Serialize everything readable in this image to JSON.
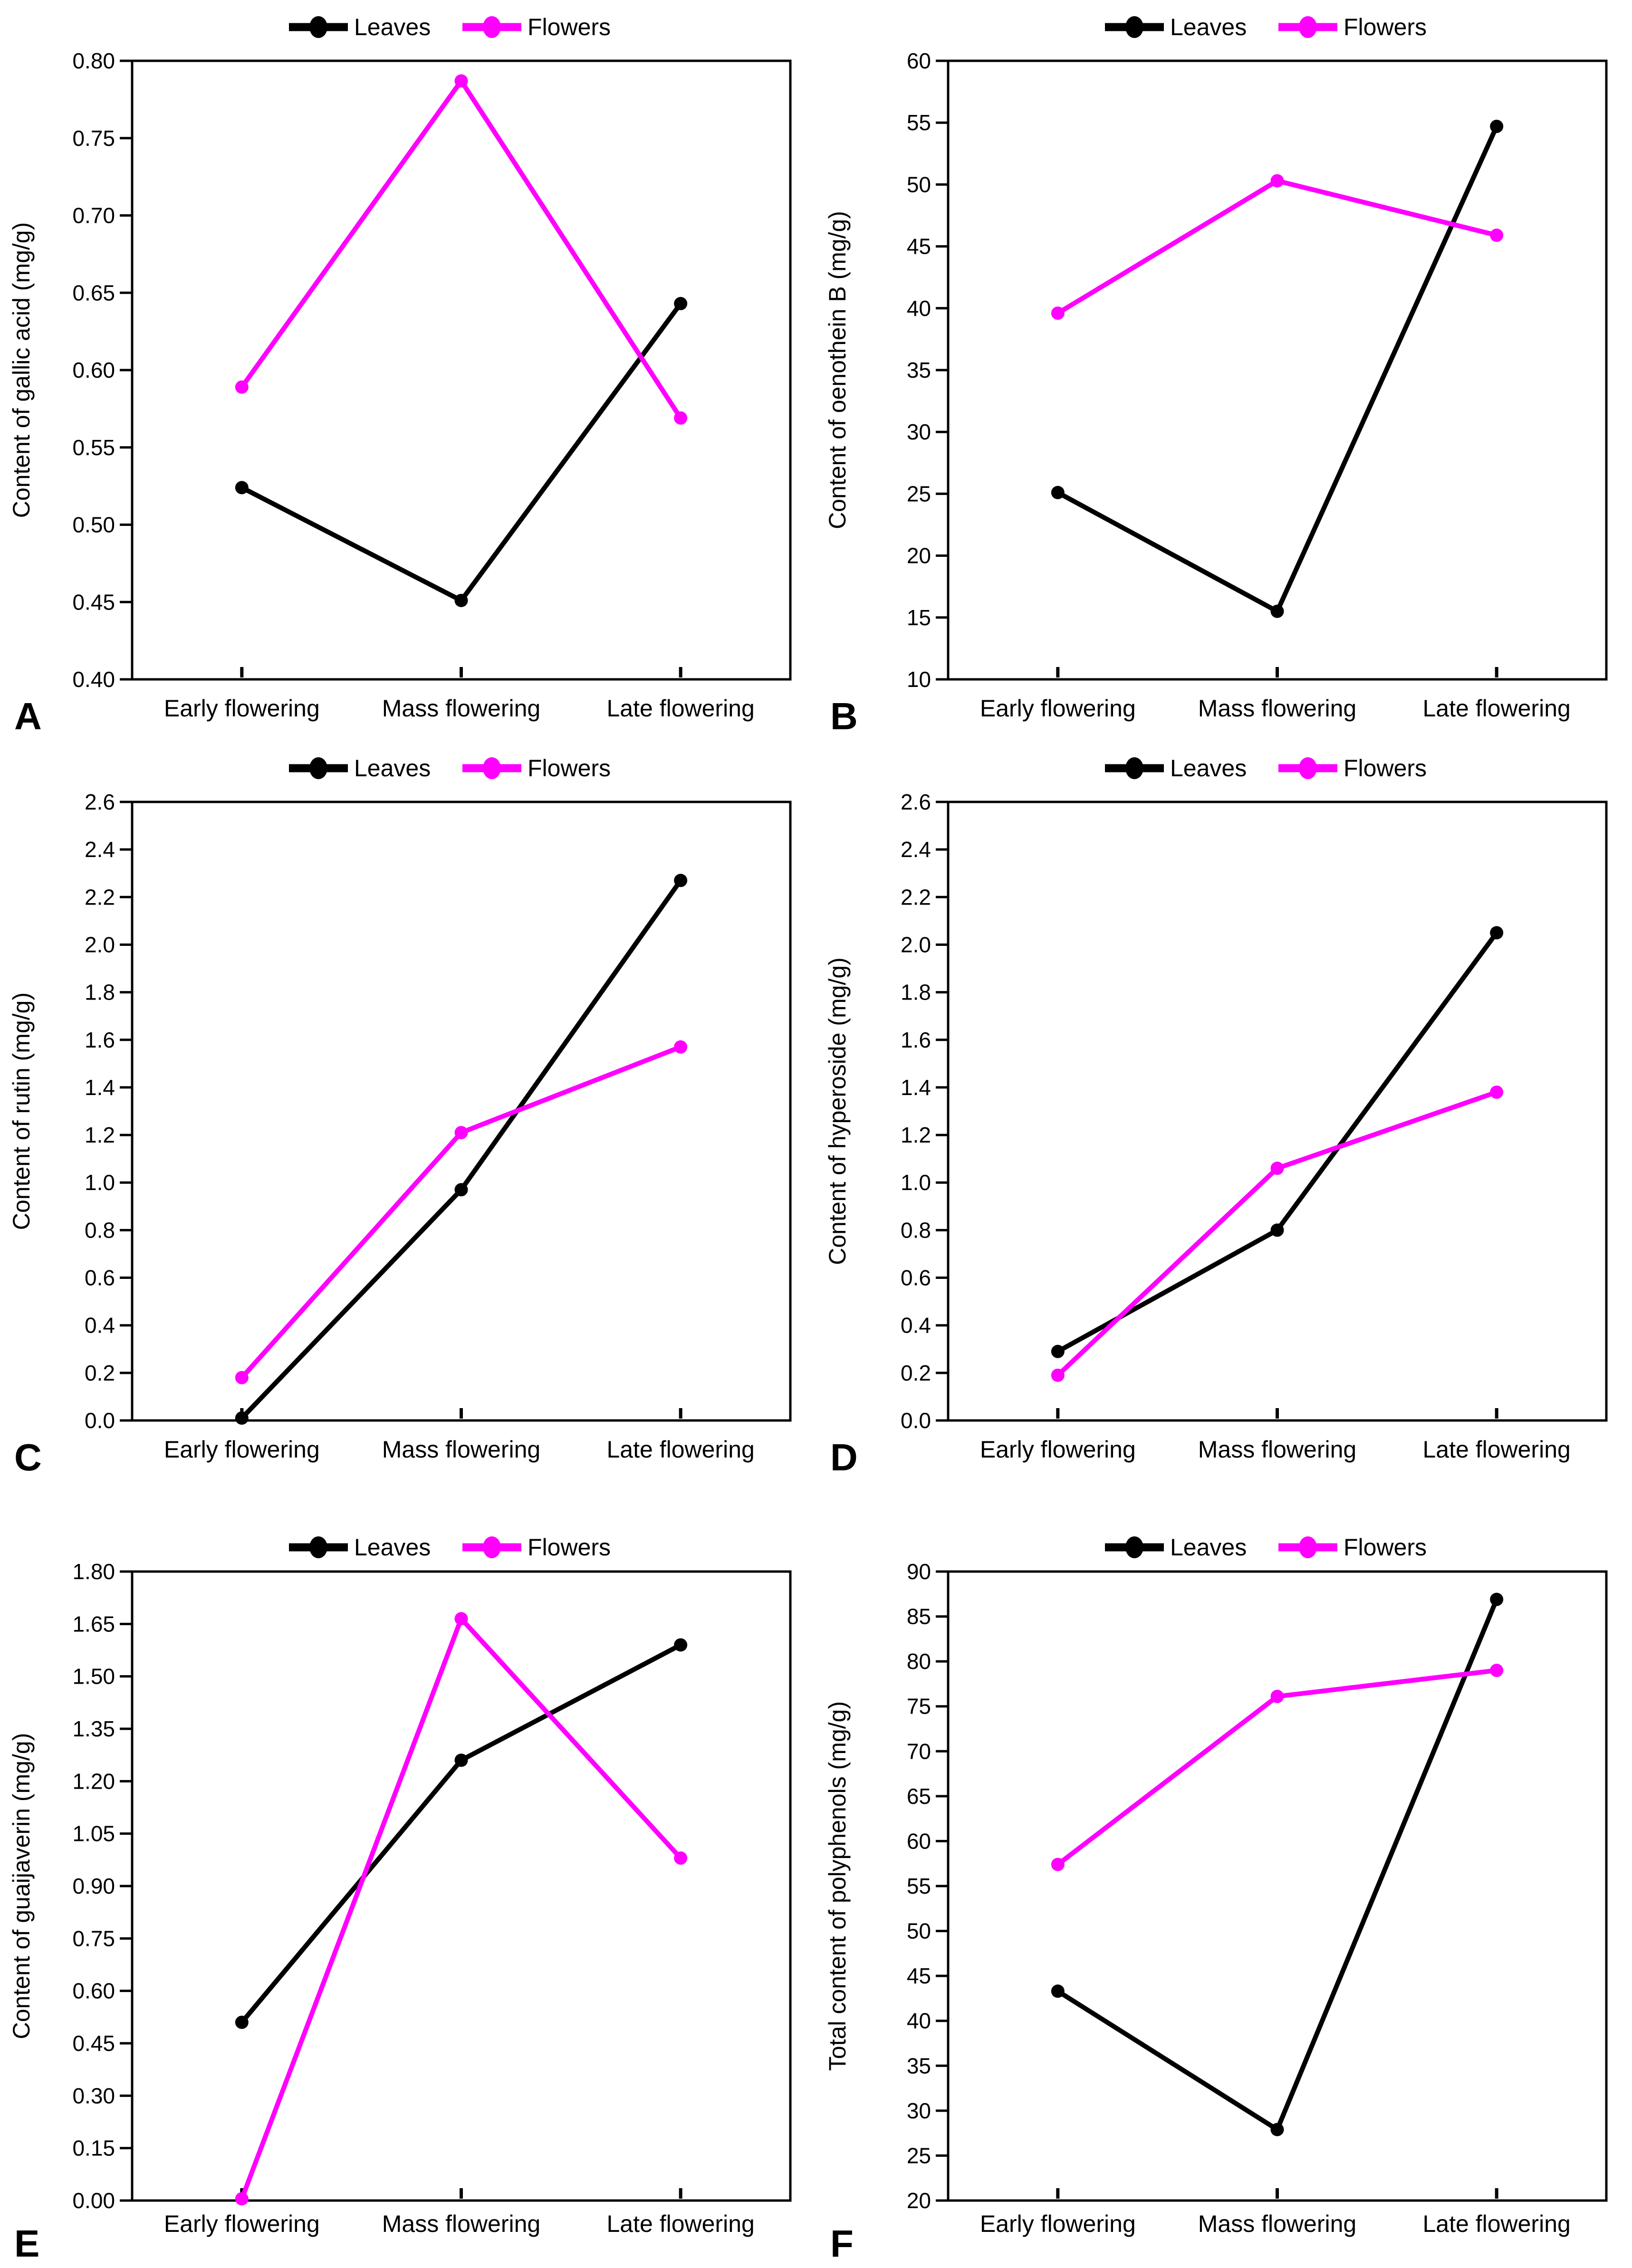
{
  "figure": {
    "background": "#ffffff",
    "legend": {
      "position": "top",
      "items": [
        {
          "label": "Leaves",
          "color": "#000000"
        },
        {
          "label": "Flowers",
          "color": "#FF00FF"
        }
      ]
    },
    "categories": [
      "Early flowering",
      "Mass flowering",
      "Late flowering"
    ],
    "panel_letters": [
      "A",
      "B",
      "C",
      "D",
      "E",
      "F"
    ]
  },
  "chart_data": [
    {
      "type": "line",
      "letter": "A",
      "ylabel": "Content of gallic acid (mg/g)",
      "xlabel": "",
      "ylim": [
        0.4,
        0.8
      ],
      "yticks": [
        "0.40",
        "0.45",
        "0.50",
        "0.55",
        "0.60",
        "0.65",
        "0.70",
        "0.75",
        "0.80"
      ],
      "categories": [
        "Early flowering",
        "Mass flowering",
        "Late flowering"
      ],
      "grid": false,
      "legend_position": "top",
      "series": [
        {
          "name": "Leaves",
          "color": "#000000",
          "values": [
            0.524,
            0.451,
            0.643
          ]
        },
        {
          "name": "Flowers",
          "color": "#FF00FF",
          "values": [
            0.589,
            0.787,
            0.569
          ]
        }
      ]
    },
    {
      "type": "line",
      "letter": "B",
      "ylabel": "Content of oenothein B (mg/g)",
      "xlabel": "",
      "ylim": [
        10,
        60
      ],
      "yticks": [
        "10",
        "15",
        "20",
        "25",
        "30",
        "35",
        "40",
        "45",
        "50",
        "55",
        "60"
      ],
      "categories": [
        "Early flowering",
        "Mass flowering",
        "Late flowering"
      ],
      "grid": false,
      "legend_position": "top",
      "series": [
        {
          "name": "Leaves",
          "color": "#000000",
          "values": [
            25.1,
            15.5,
            54.7
          ]
        },
        {
          "name": "Flowers",
          "color": "#FF00FF",
          "values": [
            39.6,
            50.3,
            45.9
          ]
        }
      ]
    },
    {
      "type": "line",
      "letter": "C",
      "ylabel": "Content of rutin (mg/g)",
      "xlabel": "",
      "ylim": [
        0.0,
        2.6
      ],
      "yticks": [
        "0.0",
        "0.2",
        "0.4",
        "0.6",
        "0.8",
        "1.0",
        "1.2",
        "1.4",
        "1.6",
        "1.8",
        "2.0",
        "2.2",
        "2.4",
        "2.6"
      ],
      "categories": [
        "Early flowering",
        "Mass flowering",
        "Late flowering"
      ],
      "grid": false,
      "legend_position": "top",
      "series": [
        {
          "name": "Leaves",
          "color": "#000000",
          "values": [
            0.01,
            0.97,
            2.27
          ]
        },
        {
          "name": "Flowers",
          "color": "#FF00FF",
          "values": [
            0.18,
            1.21,
            1.57
          ]
        }
      ]
    },
    {
      "type": "line",
      "letter": "D",
      "ylabel": "Content of hyperoside (mg/g)",
      "xlabel": "",
      "ylim": [
        0.0,
        2.6
      ],
      "yticks": [
        "0.0",
        "0.2",
        "0.4",
        "0.6",
        "0.8",
        "1.0",
        "1.2",
        "1.4",
        "1.6",
        "1.8",
        "2.0",
        "2.2",
        "2.4",
        "2.6"
      ],
      "categories": [
        "Early flowering",
        "Mass flowering",
        "Late flowering"
      ],
      "grid": false,
      "legend_position": "top",
      "series": [
        {
          "name": "Leaves",
          "color": "#000000",
          "values": [
            0.29,
            0.8,
            2.05
          ]
        },
        {
          "name": "Flowers",
          "color": "#FF00FF",
          "values": [
            0.19,
            1.06,
            1.38
          ]
        }
      ]
    },
    {
      "type": "line",
      "letter": "E",
      "ylabel": "Content of guaijaverin (mg/g)",
      "xlabel": "",
      "ylim": [
        0.0,
        1.8
      ],
      "yticks": [
        "0.00",
        "0.15",
        "0.30",
        "0.45",
        "0.60",
        "0.75",
        "0.90",
        "1.05",
        "1.20",
        "1.35",
        "1.50",
        "1.65",
        "1.80"
      ],
      "categories": [
        "Early flowering",
        "Mass flowering",
        "Late flowering"
      ],
      "grid": false,
      "legend_position": "top",
      "series": [
        {
          "name": "Leaves",
          "color": "#000000",
          "values": [
            0.51,
            1.26,
            1.59
          ]
        },
        {
          "name": "Flowers",
          "color": "#FF00FF",
          "values": [
            0.005,
            1.665,
            0.98
          ]
        }
      ]
    },
    {
      "type": "line",
      "letter": "F",
      "ylabel": "Total content of polyphenols (mg/g)",
      "xlabel": "",
      "ylim": [
        20,
        90
      ],
      "yticks": [
        "20",
        "25",
        "30",
        "35",
        "40",
        "45",
        "50",
        "55",
        "60",
        "65",
        "70",
        "75",
        "80",
        "85",
        "90"
      ],
      "categories": [
        "Early flowering",
        "Mass flowering",
        "Late flowering"
      ],
      "grid": false,
      "legend_position": "top",
      "series": [
        {
          "name": "Leaves",
          "color": "#000000",
          "values": [
            43.3,
            27.9,
            86.9
          ]
        },
        {
          "name": "Flowers",
          "color": "#FF00FF",
          "values": [
            57.4,
            76.1,
            79.0
          ]
        }
      ]
    }
  ]
}
